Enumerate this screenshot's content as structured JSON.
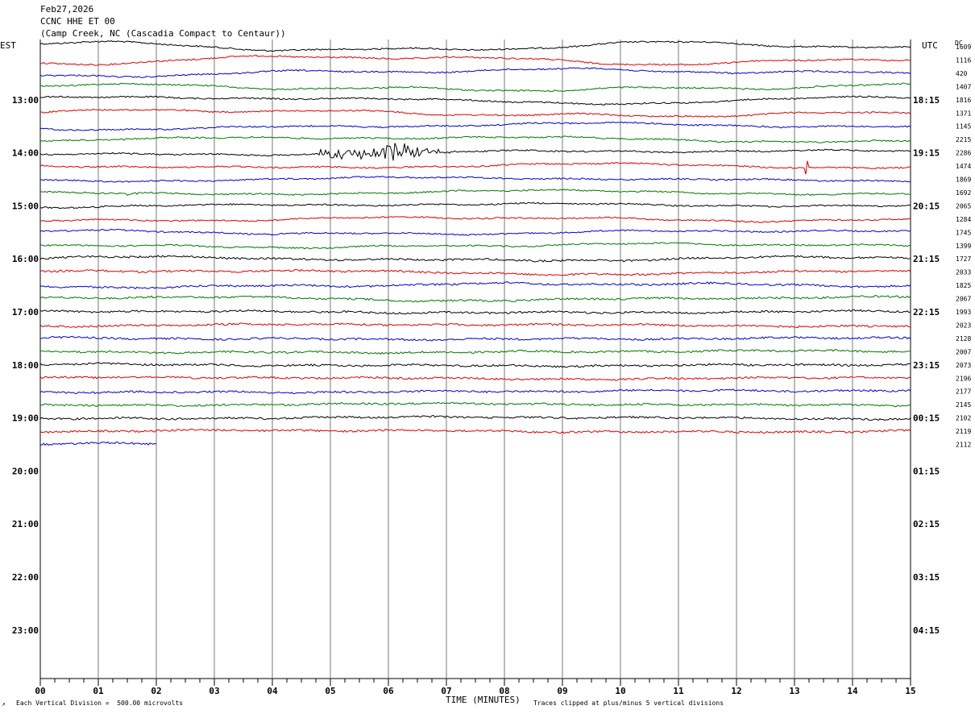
{
  "header": {
    "date": "Feb27,2026",
    "station": "CCNC HHE ET 00",
    "location": "(Camp Creek, NC (Cascadia Compact to Centaur))"
  },
  "labels": {
    "left_tz": "EST",
    "right_tz": "UTC",
    "dc_header": "DC",
    "x_axis_title": "TIME (MINUTES)",
    "scale_note": "Each Vertical Division =  500.00 microvolts",
    "clip_note": "Traces clipped at plus/minus 5 vertical divisions",
    "corner_mark": "↗"
  },
  "chart_data": {
    "type": "line",
    "title": "CCNC HHE ET 00",
    "x_label": "TIME (MINUTES)",
    "x_ticks": [
      "00",
      "01",
      "02",
      "03",
      "04",
      "05",
      "06",
      "07",
      "08",
      "09",
      "10",
      "11",
      "12",
      "13",
      "14",
      "15"
    ],
    "xlim": [
      0,
      15
    ],
    "grid": true,
    "traces_count": 31,
    "last_trace_minutes": 2,
    "colors": [
      "#000000",
      "#dd0000",
      "#0000cc",
      "#007700"
    ],
    "left_hour_labels": [
      "13:00",
      "14:00",
      "15:00",
      "16:00",
      "17:00",
      "18:00",
      "19:00",
      "20:00",
      "21:00",
      "22:00",
      "23:00"
    ],
    "right_hour_labels": [
      "18:15",
      "19:15",
      "20:15",
      "21:15",
      "22:15",
      "23:15",
      "00:15",
      "01:15",
      "02:15",
      "03:15",
      "04:15"
    ],
    "dc_offsets": [
      "1609",
      "1116",
      "420",
      "1407",
      "1816",
      "1371",
      "1145",
      "2215",
      "2286",
      "1474",
      "1869",
      "1692",
      "2065",
      "1284",
      "1745",
      "1399",
      "1727",
      "2033",
      "1825",
      "2067",
      "1993",
      "2023",
      "2128",
      "2007",
      "2073",
      "2196",
      "2177",
      "2145",
      "2102",
      "2119",
      "2112"
    ],
    "events": [
      {
        "trace": 8,
        "start_min": 4.8,
        "end_min": 7.1,
        "peak_min": 6.1,
        "amplitude": "large"
      },
      {
        "trace": 9,
        "start_min": 13.15,
        "end_min": 13.5,
        "peak_min": 13.2,
        "amplitude": "spike"
      },
      {
        "trace": 11,
        "start_min": 1.5,
        "end_min": 1.7,
        "peak_min": 1.6,
        "amplitude": "small"
      }
    ]
  }
}
